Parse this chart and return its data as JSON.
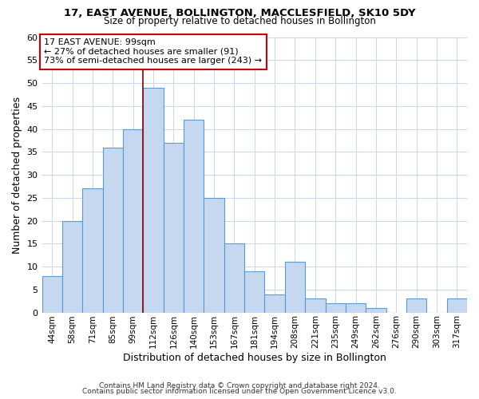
{
  "title1": "17, EAST AVENUE, BOLLINGTON, MACCLESFIELD, SK10 5DY",
  "title2": "Size of property relative to detached houses in Bollington",
  "xlabel": "Distribution of detached houses by size in Bollington",
  "ylabel": "Number of detached properties",
  "footer1": "Contains HM Land Registry data © Crown copyright and database right 2024.",
  "footer2": "Contains public sector information licensed under the Open Government Licence v3.0.",
  "bin_labels": [
    "44sqm",
    "58sqm",
    "71sqm",
    "85sqm",
    "99sqm",
    "112sqm",
    "126sqm",
    "140sqm",
    "153sqm",
    "167sqm",
    "181sqm",
    "194sqm",
    "208sqm",
    "221sqm",
    "235sqm",
    "249sqm",
    "262sqm",
    "276sqm",
    "290sqm",
    "303sqm",
    "317sqm"
  ],
  "bar_values": [
    8,
    20,
    27,
    36,
    40,
    49,
    37,
    42,
    25,
    15,
    9,
    4,
    11,
    3,
    2,
    2,
    1,
    0,
    3,
    0,
    3
  ],
  "bar_color": "#c5d8f0",
  "bar_edge_color": "#5b9bd5",
  "annotation_title": "17 EAST AVENUE: 99sqm",
  "annotation_line1": "← 27% of detached houses are smaller (91)",
  "annotation_line2": "73% of semi-detached houses are larger (243) →",
  "marker_bin_index": 4,
  "ylim": [
    0,
    60
  ],
  "yticks": [
    0,
    5,
    10,
    15,
    20,
    25,
    30,
    35,
    40,
    45,
    50,
    55,
    60
  ],
  "background_color": "#ffffff",
  "grid_color": "#c8d8e8"
}
